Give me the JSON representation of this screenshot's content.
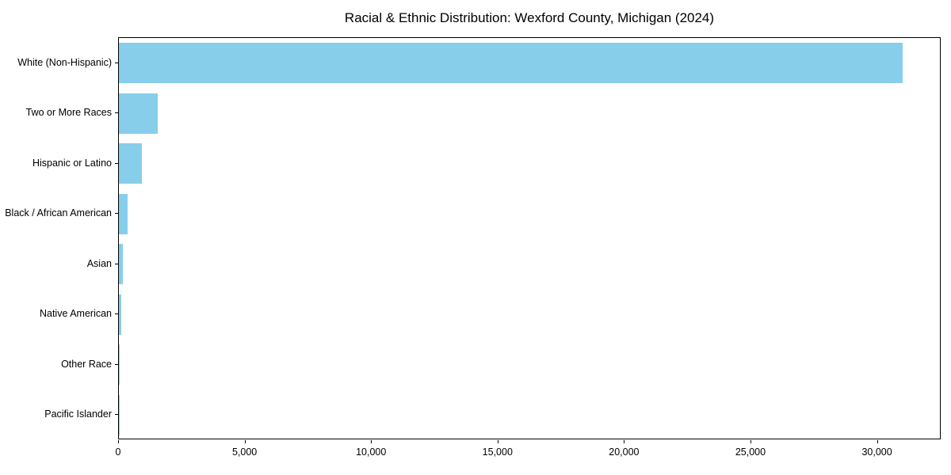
{
  "chart_data": {
    "type": "bar",
    "orientation": "horizontal",
    "title": "Racial & Ethnic Distribution: Wexford County, Michigan (2024)",
    "categories": [
      "White (Non-Hispanic)",
      "Two or More Races",
      "Hispanic or Latino",
      "Black / African American",
      "Asian",
      "Native American",
      "Other Race",
      "Pacific Islander"
    ],
    "values": [
      30970,
      1550,
      900,
      355,
      170,
      105,
      30,
      10
    ],
    "xlabel": "",
    "ylabel": "",
    "xlim": [
      0,
      32520
    ],
    "x_ticks": [
      0,
      5000,
      10000,
      15000,
      20000,
      25000,
      30000
    ],
    "x_tick_labels": [
      "0",
      "5,000",
      "10,000",
      "15,000",
      "20,000",
      "25,000",
      "30,000"
    ],
    "bar_color": "#87CEEB",
    "spine_color": "#000000",
    "grid": false,
    "legend": null,
    "bar_value_labels_shown": false
  }
}
